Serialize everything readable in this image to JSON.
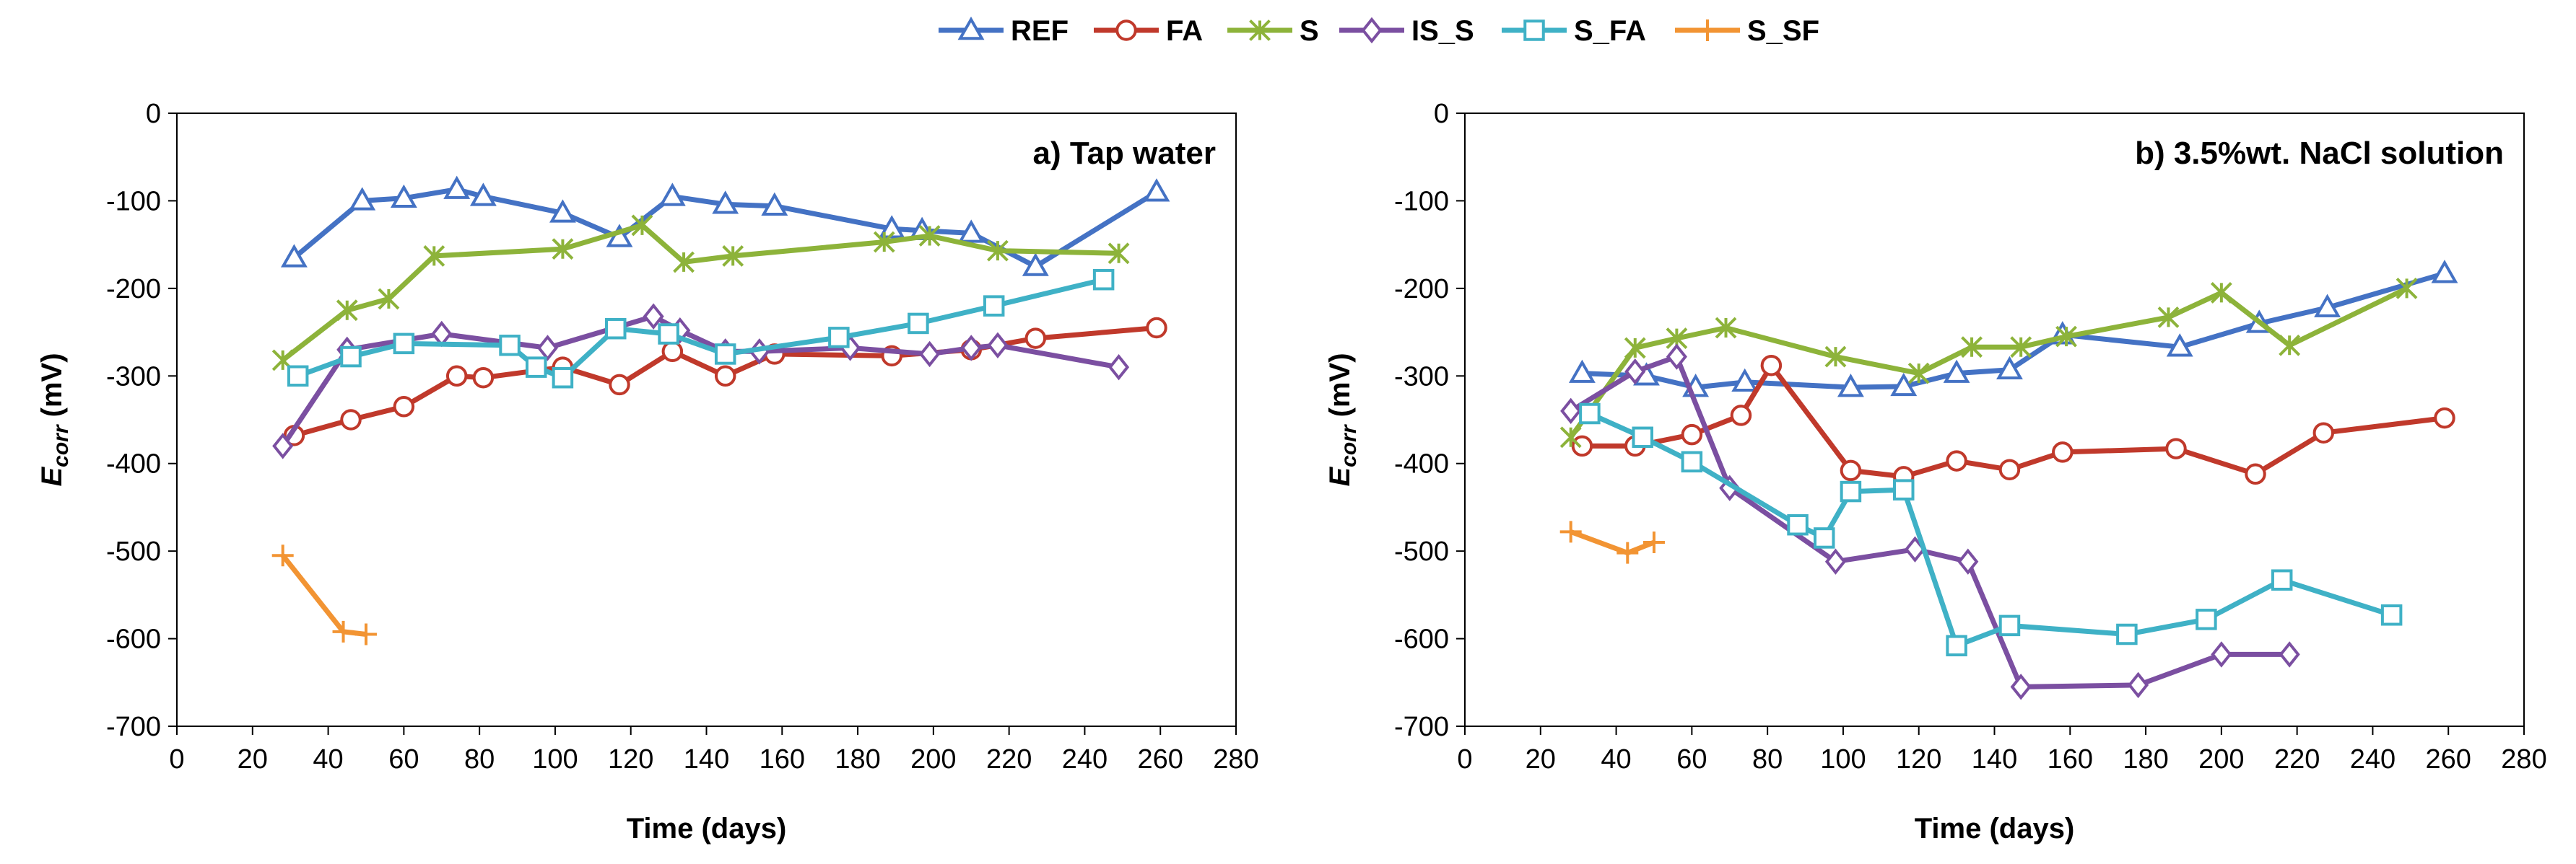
{
  "colors": {
    "REF": "#4472C4",
    "FA": "#C0392B",
    "S": "#8DB33A",
    "IS_S": "#7B4FA1",
    "S_FA": "#3FB1C6",
    "S_SF": "#F29433"
  },
  "legend": {
    "entries": [
      {
        "key": "REF",
        "label": "REF",
        "marker": "triangle"
      },
      {
        "key": "FA",
        "label": "FA",
        "marker": "circle"
      },
      {
        "key": "S",
        "label": "S",
        "marker": "x-star"
      },
      {
        "key": "IS_S",
        "label": "IS_S",
        "marker": "diamond"
      },
      {
        "key": "S_FA",
        "label": "S_FA",
        "marker": "square"
      },
      {
        "key": "S_SF",
        "label": "S_SF",
        "marker": "plus"
      }
    ]
  },
  "chart_data": [
    {
      "type": "line",
      "title": "a) Tap water",
      "xlabel": "Time (days)",
      "ylabel": "Ecorr (mV)",
      "ylabel_main": "E",
      "ylabel_sub": "corr",
      "ylabel_unit": " (mV)",
      "xlim": [
        0,
        280
      ],
      "ylim": [
        -700,
        0
      ],
      "xticks": [
        0,
        20,
        40,
        60,
        80,
        100,
        120,
        140,
        160,
        180,
        200,
        220,
        240,
        260,
        280
      ],
      "yticks": [
        0,
        -100,
        -200,
        -300,
        -400,
        -500,
        -600,
        -700
      ],
      "grid": false,
      "legend_position": "top",
      "series": [
        {
          "name": "REF",
          "x": [
            31,
            49,
            60,
            74,
            81,
            102,
            117,
            131,
            145,
            158,
            189,
            197,
            210,
            227,
            259
          ],
          "y": [
            -165,
            -100,
            -97,
            -87,
            -95,
            -114,
            -142,
            -95,
            -104,
            -106,
            -132,
            -134,
            -137,
            -175,
            -90
          ]
        },
        {
          "name": "FA",
          "x": [
            31,
            46,
            60,
            74,
            81,
            102,
            117,
            131,
            145,
            158,
            189,
            210,
            227,
            259
          ],
          "y": [
            -368,
            -350,
            -335,
            -300,
            -302,
            -290,
            -310,
            -272,
            -300,
            -275,
            -277,
            -270,
            -257,
            -245
          ]
        },
        {
          "name": "S",
          "x": [
            28,
            45,
            56,
            68,
            102,
            123,
            134,
            147,
            187,
            199,
            217,
            249
          ],
          "y": [
            -282,
            -225,
            -212,
            -163,
            -155,
            -128,
            -170,
            -163,
            -147,
            -140,
            -157,
            -160
          ]
        },
        {
          "name": "IS_S",
          "x": [
            28,
            45,
            70,
            98,
            126,
            133,
            145,
            154,
            178,
            199,
            210,
            217,
            249
          ],
          "y": [
            -380,
            -270,
            -252,
            -268,
            -232,
            -248,
            -272,
            -272,
            -268,
            -275,
            -268,
            -265,
            -290
          ]
        },
        {
          "name": "S_FA",
          "x": [
            32,
            46,
            60,
            88,
            95,
            102,
            116,
            130,
            145,
            175,
            196,
            216,
            245
          ],
          "y": [
            -300,
            -278,
            -263,
            -265,
            -290,
            -302,
            -246,
            -252,
            -275,
            -256,
            -240,
            -220,
            -190
          ]
        },
        {
          "name": "S_SF",
          "x": [
            28,
            44,
            50
          ],
          "y": [
            -505,
            -592,
            -595
          ]
        }
      ]
    },
    {
      "type": "line",
      "title": "b) 3.5%wt. NaCl solution",
      "xlabel": "Time (days)",
      "ylabel": "Ecorr (mV)",
      "ylabel_main": "E",
      "ylabel_sub": "corr",
      "ylabel_unit": " (mV)",
      "xlim": [
        0,
        280
      ],
      "ylim": [
        -700,
        0
      ],
      "xticks": [
        0,
        20,
        40,
        60,
        80,
        100,
        120,
        140,
        160,
        180,
        200,
        220,
        240,
        260,
        280
      ],
      "yticks": [
        0,
        -100,
        -200,
        -300,
        -400,
        -500,
        -600,
        -700
      ],
      "grid": false,
      "legend_position": "top",
      "series": [
        {
          "name": "REF",
          "x": [
            31,
            48,
            61,
            74,
            102,
            116,
            130,
            144,
            158,
            189,
            210,
            228,
            259
          ],
          "y": [
            -297,
            -300,
            -313,
            -307,
            -313,
            -312,
            -297,
            -293,
            -253,
            -267,
            -240,
            -222,
            -183
          ]
        },
        {
          "name": "FA",
          "x": [
            31,
            45,
            60,
            73,
            81,
            102,
            116,
            130,
            144,
            158,
            188,
            209,
            227,
            259
          ],
          "y": [
            -380,
            -380,
            -367,
            -345,
            -288,
            -408,
            -415,
            -397,
            -407,
            -387,
            -383,
            -412,
            -365,
            -348
          ]
        },
        {
          "name": "S",
          "x": [
            28,
            45,
            56,
            69,
            98,
            120,
            134,
            147,
            159,
            186,
            200,
            218,
            249
          ],
          "y": [
            -370,
            -268,
            -257,
            -245,
            -278,
            -297,
            -267,
            -267,
            -255,
            -233,
            -205,
            -265,
            -200
          ]
        },
        {
          "name": "IS_S",
          "x": [
            28,
            45,
            56,
            70,
            98,
            119,
            133,
            147,
            178,
            200,
            218
          ],
          "y": [
            -340,
            -295,
            -278,
            -428,
            -512,
            -498,
            -512,
            -655,
            -653,
            -618,
            -618
          ]
        },
        {
          "name": "S_FA",
          "x": [
            33,
            47,
            60,
            88,
            95,
            102,
            116,
            130,
            144,
            175,
            196,
            216,
            245
          ],
          "y": [
            -343,
            -370,
            -398,
            -470,
            -485,
            -432,
            -430,
            -608,
            -585,
            -595,
            -578,
            -533,
            -573
          ]
        },
        {
          "name": "S_SF",
          "x": [
            28,
            43,
            50
          ],
          "y": [
            -478,
            -502,
            -490
          ]
        }
      ]
    }
  ]
}
